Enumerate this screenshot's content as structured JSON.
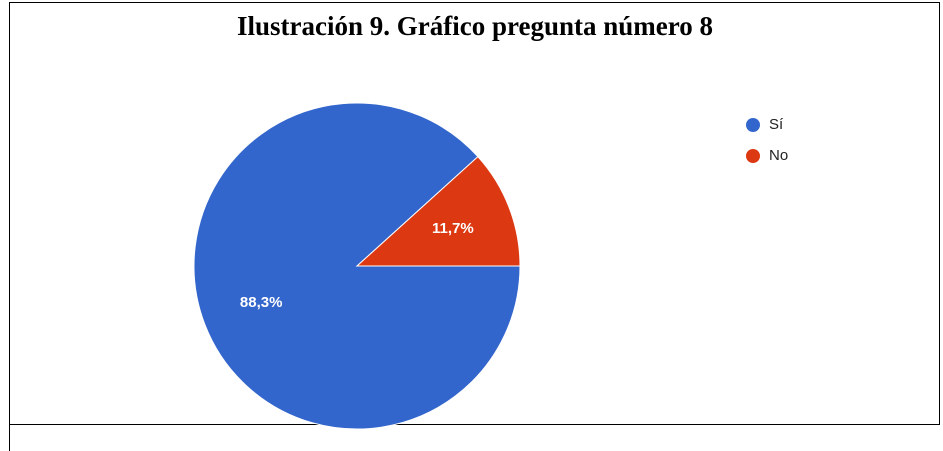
{
  "chart_data": {
    "type": "pie",
    "title": "Ilustración 9. Gráfico pregunta número 8",
    "categories": [
      "Sí",
      "No"
    ],
    "values": [
      88.3,
      11.7
    ],
    "value_labels": [
      "88,3%",
      "11,7%"
    ],
    "colors": [
      "#3366cc",
      "#dc3912"
    ],
    "legend": "right"
  }
}
